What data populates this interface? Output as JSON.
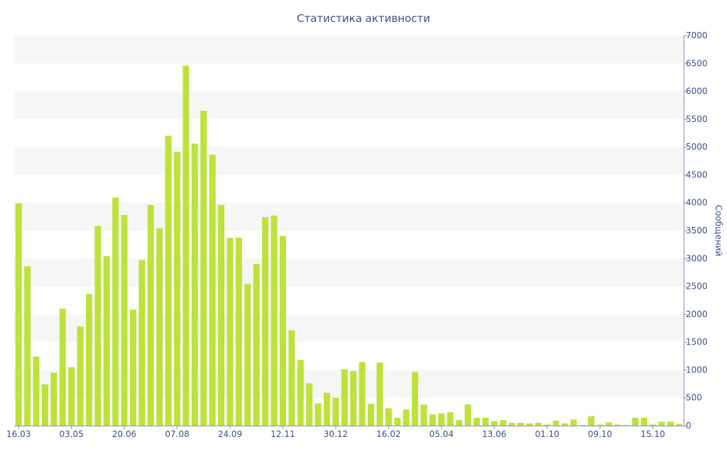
{
  "chart_data": {
    "type": "bar",
    "title": "Статистика активности",
    "xlabel": "",
    "ylabel": "Сообщений",
    "y_axis_side": "right",
    "grid": "alternating horizontal bands",
    "ylim": [
      0,
      7000
    ],
    "yticks": [
      0,
      500,
      1000,
      1500,
      2000,
      2500,
      3000,
      3500,
      4000,
      4500,
      5000,
      5500,
      6000,
      6500,
      7000
    ],
    "x_tick_labels": [
      "16.03",
      "03.05",
      "20.06",
      "07.08",
      "24.09",
      "12.11",
      "30.12",
      "16.02",
      "05.04",
      "13.06",
      "01.10",
      "09.10",
      "15.10"
    ],
    "x_tick_bar_index": [
      0,
      6,
      12,
      18,
      24,
      30,
      36,
      42,
      48,
      54,
      60,
      66,
      72
    ],
    "bar_color": "#bde23a",
    "band_color": "#f6f6f6",
    "text_color": "#3e4e8c",
    "values": [
      3990,
      2860,
      1240,
      740,
      950,
      2100,
      1050,
      1780,
      2360,
      3580,
      3040,
      4090,
      3780,
      2080,
      2970,
      3960,
      3540,
      5200,
      4910,
      6460,
      5060,
      5650,
      4860,
      3960,
      3370,
      3370,
      2540,
      2900,
      3740,
      3770,
      3400,
      1710,
      1180,
      760,
      400,
      590,
      500,
      1010,
      980,
      1140,
      390,
      1130,
      310,
      140,
      290,
      960,
      380,
      200,
      220,
      240,
      100,
      380,
      140,
      140,
      80,
      100,
      50,
      50,
      40,
      50,
      20,
      90,
      40,
      110,
      10,
      170,
      20,
      60,
      20,
      10,
      140,
      140,
      20,
      70,
      70,
      30
    ]
  }
}
